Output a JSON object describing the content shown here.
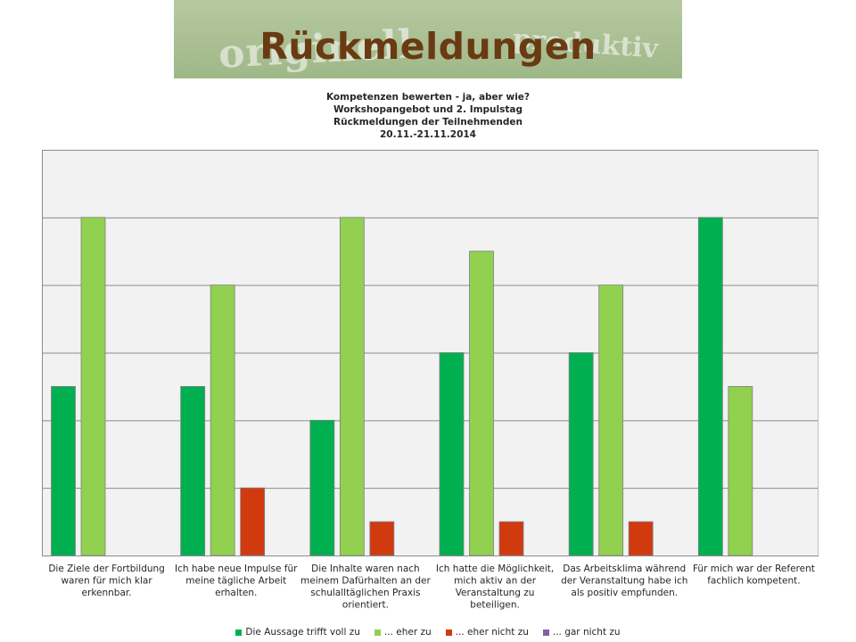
{
  "slide": {
    "title": "Rückmeldungen",
    "banner_words": [
      "originell",
      "produktiv"
    ]
  },
  "chart_data": {
    "type": "bar",
    "title_lines": [
      "Kompetenzen bewerten  - ja, aber wie?",
      "Workshopangebot und 2. Impulstag",
      "Rückmeldungen der Teilnehmenden",
      "20.11.-21.11.2014"
    ],
    "categories": [
      [
        "Die Ziele der Fortbildung",
        "waren für mich klar",
        "erkennbar."
      ],
      [
        "Ich habe neue Impulse für",
        "meine tägliche Arbeit",
        "erhalten."
      ],
      [
        "Die Inhalte waren nach",
        "meinem Dafürhalten an der",
        "schulalltäglichen Praxis",
        "orientiert."
      ],
      [
        "Ich hatte die Möglichkeit,",
        "mich aktiv an der",
        "Veranstaltung zu",
        "beteiligen."
      ],
      [
        "Das Arbeitsklima während",
        "der Veranstaltung habe ich",
        "als positiv empfunden."
      ],
      [
        "Für mich war der Referent",
        "fachlich kompetent."
      ]
    ],
    "series": [
      {
        "name": "Die Aussage trifft voll zu",
        "color": "#00b050",
        "values": [
          5,
          5,
          4,
          6,
          6,
          10
        ]
      },
      {
        "name": "... eher zu",
        "color": "#92d050",
        "values": [
          10,
          8,
          10,
          9,
          8,
          5
        ]
      },
      {
        "name": "... eher nicht zu",
        "color": "#d03a0e",
        "values": [
          0,
          2,
          1,
          1,
          1,
          0
        ]
      },
      {
        "name": "... gar nicht zu",
        "color": "#7f60a8",
        "values": [
          0,
          0,
          0,
          0,
          0,
          0
        ]
      }
    ],
    "ylim": [
      0,
      12
    ],
    "grid": true,
    "axis_labels_visible": false,
    "legend_position": "bottom",
    "plot_background": "#f2f2f2",
    "bar_outline": "#7f7f7f"
  }
}
